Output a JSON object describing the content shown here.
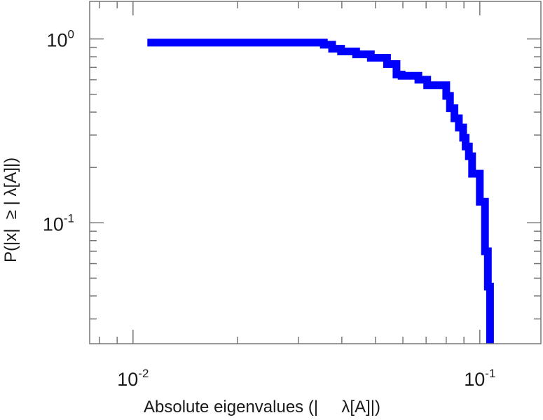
{
  "chart_data": {
    "type": "line",
    "title": "",
    "xlabel": "Absolute eigenvalues (|     λ[A]|)",
    "ylabel": "P(|x|  ≥ | λ[A]|)",
    "xscale": "log",
    "yscale": "log",
    "xlim": [
      0.0075,
      0.15
    ],
    "ylim": [
      0.022,
      1.6
    ],
    "grid": false,
    "legend": "none",
    "line_color": "#0000ff",
    "x_ticks": [
      {
        "base": "10",
        "exp": "-2"
      },
      {
        "base": "10",
        "exp": "-1"
      }
    ],
    "y_ticks": [
      {
        "base": "10",
        "exp": "0"
      },
      {
        "base": "10",
        "exp": "-1"
      }
    ],
    "series": [
      {
        "x": [
          0.011,
          0.0355,
          0.0355,
          0.0375,
          0.0375,
          0.0398,
          0.0398,
          0.044,
          0.044,
          0.0485,
          0.0485,
          0.054,
          0.054,
          0.0575,
          0.0575,
          0.0595,
          0.0595,
          0.0665,
          0.0665,
          0.0705,
          0.0705,
          0.08,
          0.08,
          0.082,
          0.082,
          0.0845,
          0.0845,
          0.087,
          0.087,
          0.0895,
          0.0895,
          0.091,
          0.091,
          0.093,
          0.093,
          0.095,
          0.095,
          0.1,
          0.1,
          0.1035,
          0.1035,
          0.1055,
          0.1055,
          0.107,
          0.107
        ],
        "y": [
          0.955,
          0.955,
          0.93,
          0.93,
          0.885,
          0.885,
          0.855,
          0.855,
          0.825,
          0.825,
          0.79,
          0.79,
          0.73,
          0.73,
          0.64,
          0.64,
          0.63,
          0.63,
          0.6,
          0.6,
          0.56,
          0.56,
          0.49,
          0.49,
          0.42,
          0.42,
          0.37,
          0.37,
          0.33,
          0.33,
          0.29,
          0.29,
          0.26,
          0.26,
          0.23,
          0.23,
          0.185,
          0.185,
          0.13,
          0.13,
          0.07,
          0.07,
          0.045,
          0.045,
          0.022
        ]
      }
    ]
  }
}
